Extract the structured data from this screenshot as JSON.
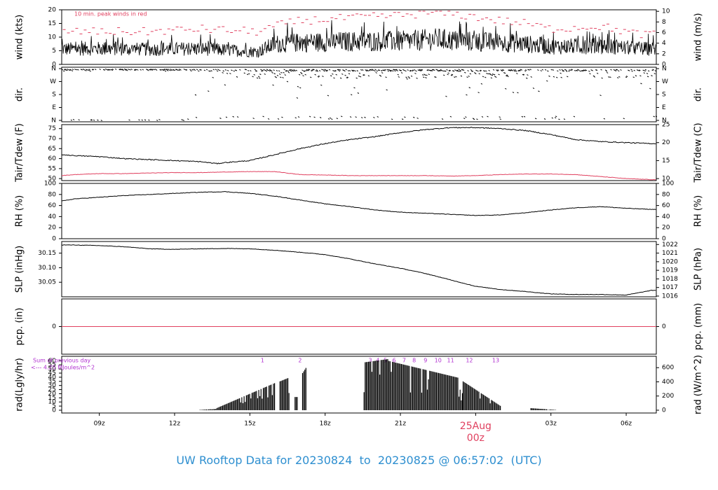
{
  "footer": {
    "prefix": "UW Rooftop Data for",
    "start": "20230824",
    "to": "to",
    "end": "20230825 @ 06:57:02",
    "tz": "(UTC)"
  },
  "colors": {
    "accent_red": "#e0405f",
    "purple": "#b030d0",
    "footer_blue": "#2e8fd0",
    "line": "#000000"
  },
  "chart_data": [
    {
      "type": "line",
      "ylabel": "wind (kts)",
      "ylabel_right": "wind (m/s)",
      "ylim": [
        0,
        20
      ],
      "yticks": [
        0,
        5,
        10,
        15,
        20
      ],
      "ylim_right": [
        0,
        10
      ],
      "yticks_right": [
        0,
        2,
        4,
        6,
        8,
        10
      ],
      "annotation": "10 min. peak winds in red",
      "series": [],
      "x_hours": [
        7.5,
        9,
        11,
        13,
        15.3,
        16,
        17,
        19,
        21,
        22.5,
        23.5,
        25,
        26,
        27,
        29,
        30.5,
        31
      ],
      "mean_kts": [
        5.6,
        5.8,
        5.5,
        5.8,
        4.6,
        7.5,
        8.0,
        8.4,
        8.5,
        9.2,
        8.5,
        8.0,
        7.5,
        6.5,
        6.8,
        5.8,
        5.7
      ],
      "peak_kts": [
        12,
        12,
        12,
        13,
        12,
        14,
        16,
        17,
        18,
        19,
        18,
        16,
        15,
        13,
        14,
        11,
        11
      ]
    },
    {
      "type": "scatter",
      "ylabel": "dir.",
      "ylabel_right": "dir.",
      "yticks": [
        "N",
        "E",
        "S",
        "W",
        "N"
      ],
      "series": []
    },
    {
      "type": "line",
      "ylabel": "Tair/Tdew (F)",
      "ylabel_right": "Tair/Tdew (C)",
      "ylim": [
        49,
        77
      ],
      "yticks": [
        50,
        55,
        60,
        65,
        70,
        75
      ],
      "yticks_right": [
        10,
        15,
        20,
        25
      ],
      "x_hours": [
        7.5,
        8,
        9,
        10,
        11,
        12,
        13,
        13.7,
        14,
        15,
        16,
        17,
        18,
        19,
        20,
        21,
        22,
        23,
        24,
        25,
        26,
        27,
        28,
        29,
        30,
        31
      ],
      "series": [
        {
          "values": [
            62,
            61.5,
            61,
            60,
            59.5,
            59,
            58.5,
            57.5,
            58,
            59,
            62,
            65,
            67.5,
            69.5,
            71,
            73,
            74.5,
            75.5,
            75.5,
            75,
            74,
            72,
            69.5,
            68.5,
            68,
            67.5
          ]
        },
        {
          "values": [
            51.5,
            52,
            52.5,
            52.5,
            52.8,
            53,
            53,
            53.2,
            53.3,
            53.5,
            53.5,
            52,
            51.8,
            51.5,
            51.5,
            51.5,
            51.5,
            51.3,
            51.5,
            52,
            52.3,
            52.3,
            52,
            51,
            50,
            49.5
          ]
        }
      ]
    },
    {
      "type": "line",
      "ylabel": "RH (%)",
      "ylabel_right": "RH (%)",
      "ylim": [
        0,
        100
      ],
      "yticks": [
        0,
        20,
        40,
        60,
        80,
        100
      ],
      "x_hours": [
        7.5,
        8,
        9,
        10,
        11,
        12,
        13,
        14,
        15,
        16,
        17,
        18,
        19,
        20,
        21,
        22,
        23,
        24,
        25,
        26,
        27,
        28,
        29,
        30,
        31
      ],
      "series": [
        {
          "values": [
            68,
            72,
            75,
            78,
            80,
            82,
            84,
            85,
            82,
            77,
            70,
            63,
            58,
            52,
            48,
            46,
            44,
            42,
            43,
            47,
            52,
            56,
            58,
            55,
            53
          ]
        }
      ]
    },
    {
      "type": "line",
      "ylabel": "SLP (inHg)",
      "ylabel_right": "SLP (hPa)",
      "ylim": [
        30.0,
        30.19
      ],
      "yticks": [
        30.05,
        30.1,
        30.15
      ],
      "yticks_right": [
        1016,
        1017,
        1018,
        1019,
        1020,
        1021,
        1022
      ],
      "x_hours": [
        7.5,
        8,
        9,
        10,
        11,
        12,
        13,
        14,
        15,
        16,
        17,
        18,
        19,
        20,
        21,
        22,
        23,
        24,
        25,
        26,
        27,
        28,
        29,
        30,
        31
      ],
      "series": [
        {
          "values": [
            30.178,
            30.178,
            30.176,
            30.172,
            30.165,
            30.163,
            30.165,
            30.166,
            30.165,
            30.16,
            30.153,
            30.145,
            30.13,
            30.113,
            30.098,
            30.08,
            30.058,
            30.036,
            30.025,
            30.018,
            30.01,
            30.008,
            30.008,
            30.006,
            30.022
          ]
        }
      ]
    },
    {
      "type": "line",
      "ylabel": "pcp. (in)",
      "ylabel_right": "pcp. (mm)",
      "yticks": [
        0
      ],
      "yticks_right": [
        0
      ],
      "series": [
        {
          "values": [
            0,
            0
          ]
        }
      ]
    },
    {
      "type": "bar",
      "ylabel": "rad(Lgly/hr)",
      "ylabel_right": "rad (W/m^2)",
      "ylim": [
        0,
        62
      ],
      "yticks": [
        0,
        5,
        10,
        15,
        20,
        25,
        30,
        35,
        40,
        45,
        50,
        55,
        60
      ],
      "yticks_right": [
        0,
        200,
        400,
        600
      ],
      "note_line1": "Sum of previous day",
      "note_line2": "<--- 4.25 MJoules/m^2",
      "markers": [
        {
          "label": "1",
          "x": 15.5
        },
        {
          "label": "2",
          "x": 17.0
        },
        {
          "label": "3",
          "x": 19.8
        },
        {
          "label": "4",
          "x": 20.1
        },
        {
          "label": "5",
          "x": 20.4
        },
        {
          "label": "6",
          "x": 20.75
        },
        {
          "label": "7",
          "x": 21.15
        },
        {
          "label": "8",
          "x": 21.55
        },
        {
          "label": "9",
          "x": 22.0
        },
        {
          "label": "10",
          "x": 22.5
        },
        {
          "label": "11",
          "x": 23.0
        },
        {
          "label": "12",
          "x": 23.75
        },
        {
          "label": "13",
          "x": 24.8
        }
      ],
      "segments": [
        {
          "from": 13.0,
          "to": 13.6,
          "start": 0.3,
          "end": 1.5
        },
        {
          "from": 13.6,
          "to": 16.0,
          "start": 1.5,
          "end": 33
        },
        {
          "from": 16.2,
          "to": 16.6,
          "start": 35,
          "end": 40
        },
        {
          "from": 16.8,
          "to": 16.9,
          "start": 16,
          "end": 16
        },
        {
          "from": 17.1,
          "to": 17.25,
          "start": 45,
          "end": 52
        },
        {
          "from": 19.55,
          "to": 20.5,
          "start": 58,
          "end": 62
        },
        {
          "from": 20.5,
          "to": 23.5,
          "start": 60,
          "end": 38
        },
        {
          "from": 23.5,
          "to": 25.0,
          "start": 35,
          "end": 5
        },
        {
          "from": 26.2,
          "to": 27.2,
          "start": 2.5,
          "end": 0.3
        }
      ]
    }
  ],
  "x_axis": {
    "start_hour": 7.5,
    "end_hour": 31.2,
    "ticks": [
      {
        "label": "09z",
        "hour": 9
      },
      {
        "label": "12z",
        "hour": 12
      },
      {
        "label": "15z",
        "hour": 15
      },
      {
        "label": "18z",
        "hour": 18
      },
      {
        "label": "21z",
        "hour": 21
      },
      {
        "label": "03z",
        "hour": 27
      },
      {
        "label": "06z",
        "hour": 30
      }
    ],
    "date_marker": {
      "date": "25Aug",
      "time": "00z",
      "hour": 24
    }
  }
}
